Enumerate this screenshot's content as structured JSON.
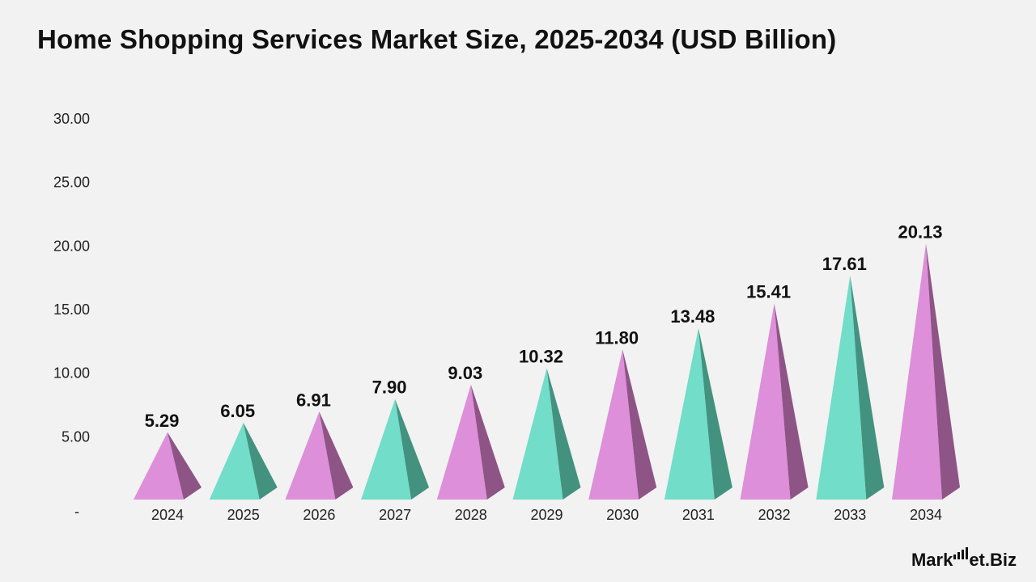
{
  "title": "Home Shopping Services Market Size, 2025-2034 (USD Billion)",
  "colors": {
    "pink_light": "#dd8fd9",
    "pink_dark": "#8e5486",
    "teal_light": "#72ddc9",
    "teal_dark": "#43927f",
    "background": "#f2f2f2"
  },
  "chart_data": {
    "type": "bar",
    "title": "Home Shopping Services Market Size, 2025-2034 (USD Billion)",
    "categories": [
      "2024",
      "2025",
      "2026",
      "2027",
      "2028",
      "2029",
      "2030",
      "2031",
      "2032",
      "2033",
      "2034"
    ],
    "values": [
      5.29,
      6.05,
      6.91,
      7.9,
      9.03,
      10.32,
      11.8,
      13.48,
      15.41,
      17.61,
      20.13
    ],
    "value_labels": [
      "5.29",
      "6.05",
      "6.91",
      "7.90",
      "9.03",
      "10.32",
      "11.80",
      "13.48",
      "15.41",
      "17.61",
      "20.13"
    ],
    "bar_colors": [
      "pink",
      "teal",
      "pink",
      "teal",
      "pink",
      "teal",
      "pink",
      "teal",
      "pink",
      "teal",
      "pink"
    ],
    "yticks": [
      "-",
      "5.00",
      "10.00",
      "15.00",
      "20.00",
      "25.00",
      "30.00"
    ],
    "ylim": [
      0,
      30
    ],
    "xlabel": "",
    "ylabel": "",
    "grid": false,
    "legend": "none",
    "mark_shape": "pyramid"
  },
  "logo": {
    "text_left": "Mark",
    "text_right": "et.Biz"
  }
}
